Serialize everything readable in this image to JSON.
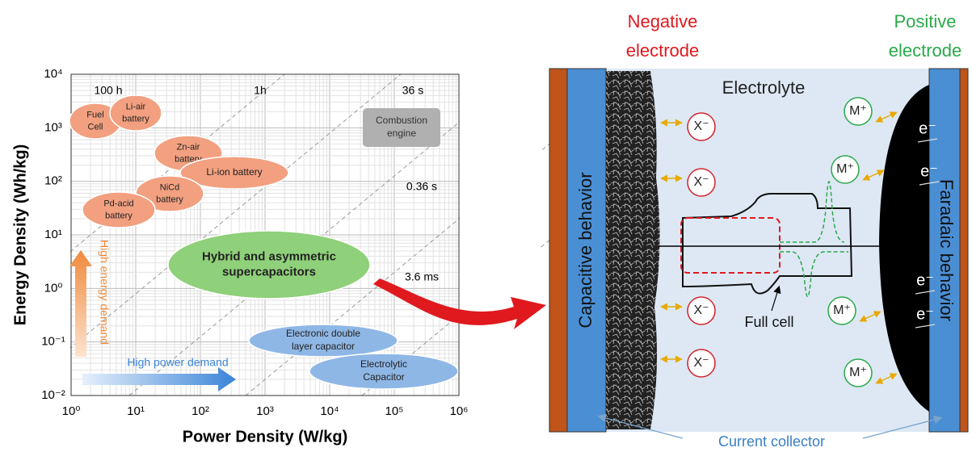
{
  "ragone": {
    "y_label": "Energy Density (Wh/kg)",
    "x_label": "Power Density (W/kg)",
    "xticks": [
      "10⁰",
      "10¹",
      "10²",
      "10³",
      "10⁴",
      "10⁵",
      "10⁶"
    ],
    "yticks": [
      "10⁻²",
      "10⁻¹",
      "10⁰",
      "10¹",
      "10²",
      "10³",
      "10⁴"
    ],
    "time_labels": [
      "100 h",
      "1h",
      "36 s",
      "0.36 s",
      "3.6 ms"
    ],
    "regions": [
      {
        "lines": [
          "Fuel",
          "Cell"
        ]
      },
      {
        "lines": [
          "Li-air",
          "battery"
        ]
      },
      {
        "lines": [
          "Zn-air",
          "battery"
        ]
      },
      {
        "lines": [
          "Li-ion battery"
        ]
      },
      {
        "lines": [
          "NiCd",
          "battery"
        ]
      },
      {
        "lines": [
          "Pd-acid",
          "battery"
        ]
      },
      {
        "lines": [
          "Combustion",
          "engine"
        ]
      },
      {
        "lines": [
          "Hybrid and asymmetric",
          "supercapacitors"
        ]
      },
      {
        "lines": [
          "Electronic double",
          "layer capacitor"
        ]
      },
      {
        "lines": [
          "Electrolytic",
          "Capacitor"
        ]
      }
    ],
    "energy_demand": "High energy demand",
    "power_demand": "High power demand"
  },
  "cell": {
    "negative": [
      "Negative",
      "electrode"
    ],
    "positive": [
      "Positive",
      "electrode"
    ],
    "electrolyte": "Electrolyte",
    "capacitive": "Capacitive behavior",
    "faradaic": "Faradaic behavior",
    "full_cell": "Full cell",
    "current_collector": "Current collector",
    "anions": [
      "X⁻",
      "X⁻",
      "X⁻",
      "X⁻"
    ],
    "cations": [
      "M⁺",
      "M⁺",
      "M⁺",
      "M⁺"
    ],
    "electrons": [
      "e⁻",
      "e⁻",
      "e⁻",
      "e⁻"
    ]
  }
}
